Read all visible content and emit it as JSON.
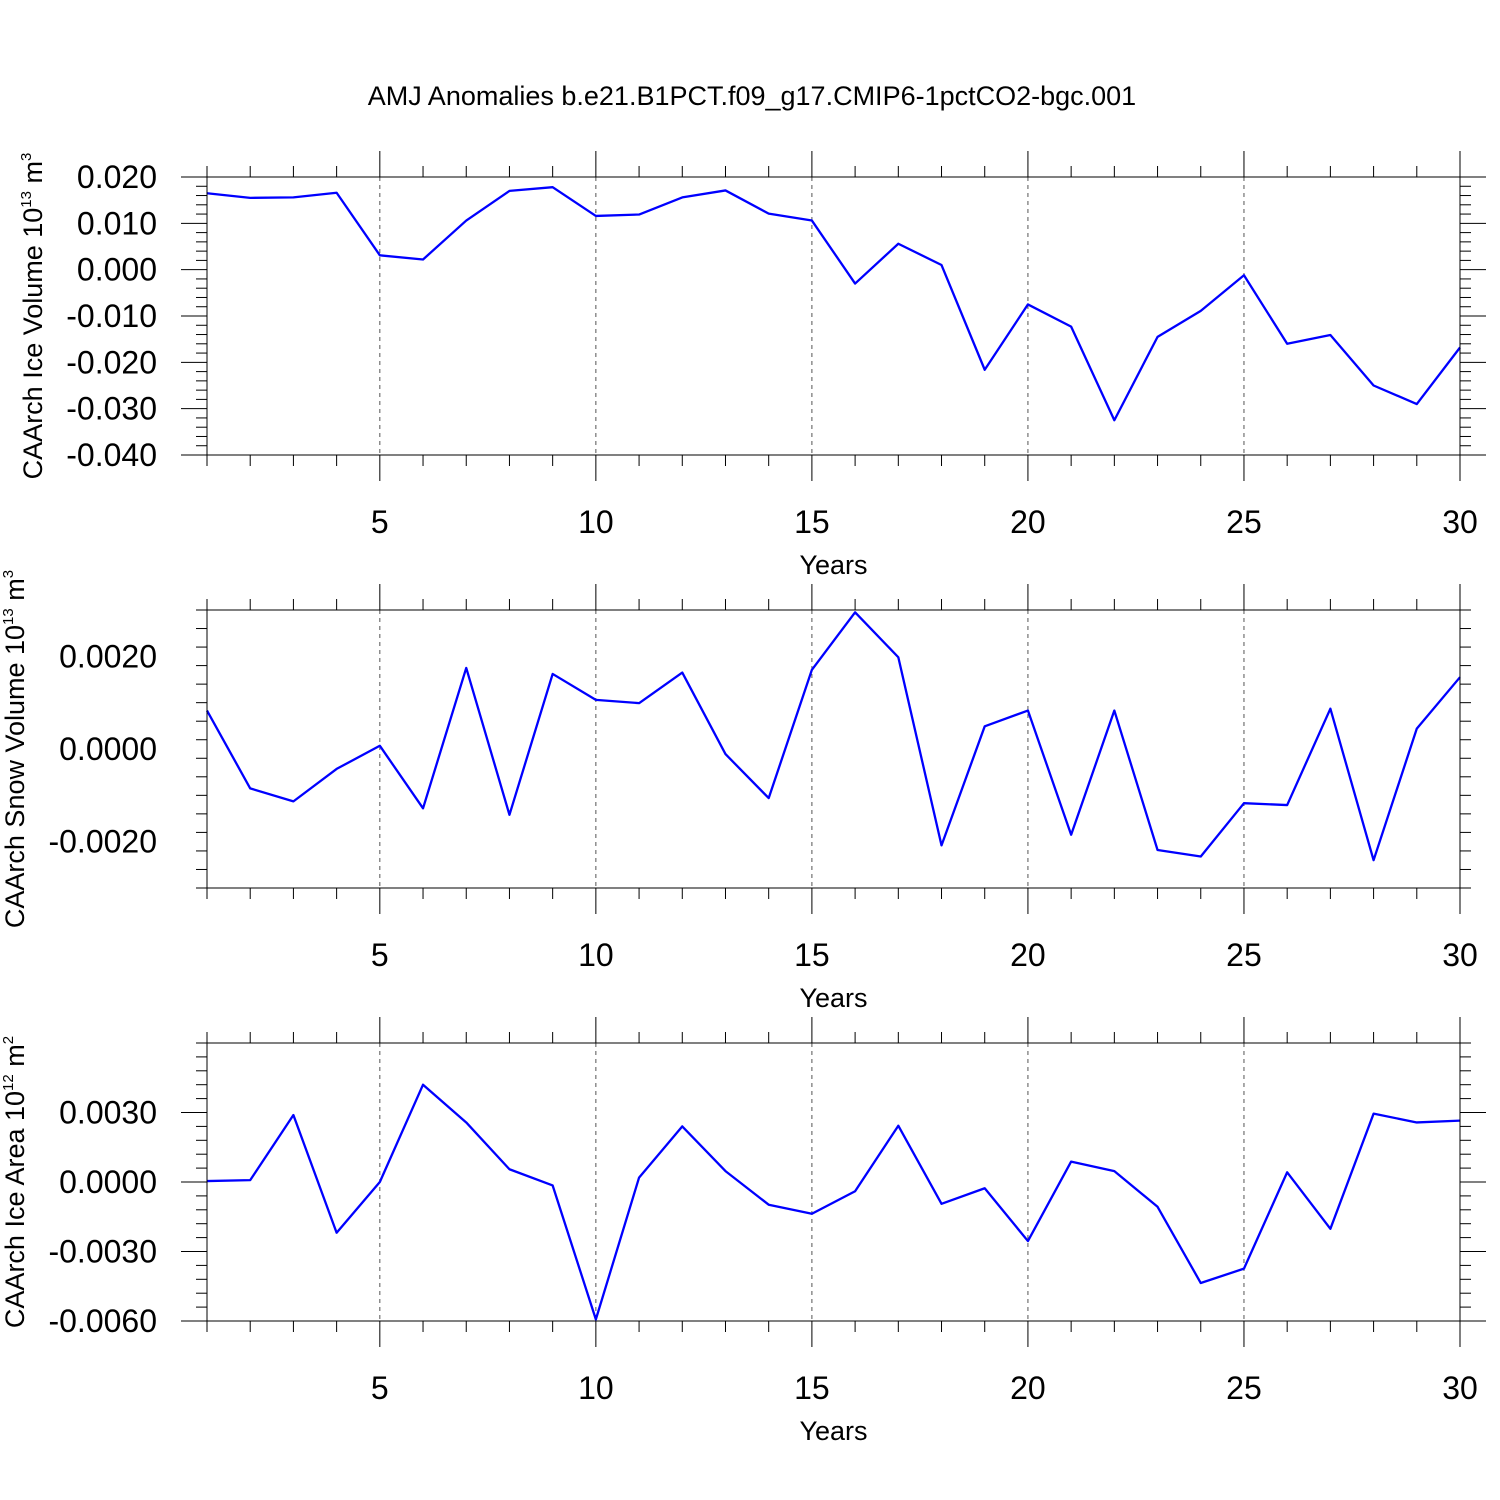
{
  "title": "AMJ Anomalies b.e21.B1PCT.f09_g17.CMIP6-1pctCO2-bgc.001",
  "chart_data": [
    {
      "type": "line",
      "title": "AMJ Anomalies b.e21.B1PCT.f09_g17.CMIP6-1pctCO2-bgc.001",
      "xlabel": "Years",
      "ylabel": {
        "prefix": "CAArch Ice Volume 10",
        "exponent": "13",
        "unit": " m",
        "unit_exponent": "3"
      },
      "xlim": [
        1,
        30
      ],
      "ylim": [
        -0.04,
        0.02
      ],
      "xticks": [
        5,
        10,
        15,
        20,
        25,
        30
      ],
      "xtick_labels": [
        "5",
        "10",
        "15",
        "20",
        "25",
        "30"
      ],
      "yticks": [
        -0.04,
        -0.03,
        -0.02,
        -0.01,
        0.0,
        0.01,
        0.02
      ],
      "ytick_labels": [
        "-0.040",
        "-0.030",
        "-0.020",
        "-0.010",
        "0.000",
        "0.010",
        "0.020"
      ],
      "grid": "vertical dashed at major x ticks",
      "line_color": "#0000ff",
      "x": [
        1,
        2,
        3,
        4,
        5,
        6,
        7,
        8,
        9,
        10,
        11,
        12,
        13,
        14,
        15,
        16,
        17,
        18,
        19,
        20,
        21,
        22,
        23,
        24,
        25,
        26,
        27,
        28,
        29,
        30
      ],
      "values": [
        0.0165,
        0.0155,
        0.0156,
        0.0166,
        0.0031,
        0.0022,
        0.0106,
        0.017,
        0.0178,
        0.0116,
        0.0119,
        0.0156,
        0.0171,
        0.0121,
        0.0106,
        -0.003,
        0.0056,
        0.001,
        -0.0216,
        -0.0075,
        -0.0123,
        -0.0325,
        -0.0145,
        -0.0089,
        -0.0012,
        -0.016,
        -0.0141,
        -0.025,
        -0.029,
        -0.0168
      ]
    },
    {
      "type": "line",
      "xlabel": "Years",
      "ylabel": {
        "prefix": "CAArch Snow Volume 10",
        "exponent": "13",
        "unit": " m",
        "unit_exponent": "3"
      },
      "xlim": [
        1,
        30
      ],
      "ylim": [
        -0.003,
        0.003
      ],
      "xticks": [
        5,
        10,
        15,
        20,
        25,
        30
      ],
      "xtick_labels": [
        "5",
        "10",
        "15",
        "20",
        "25",
        "30"
      ],
      "yticks": [
        -0.002,
        0.0,
        0.002
      ],
      "ytick_labels": [
        "-0.0020",
        "0.0000",
        "0.0020"
      ],
      "grid": "vertical dashed at major x ticks",
      "line_color": "#0000ff",
      "x": [
        1,
        2,
        3,
        4,
        5,
        6,
        7,
        8,
        9,
        10,
        11,
        12,
        13,
        14,
        15,
        16,
        17,
        18,
        19,
        20,
        21,
        22,
        23,
        24,
        25,
        26,
        27,
        28,
        29,
        30
      ],
      "values": [
        0.00083,
        -0.00085,
        -0.00113,
        -0.00043,
        7e-05,
        -0.00128,
        0.00175,
        -0.00142,
        0.00162,
        0.00106,
        0.00099,
        0.00165,
        -0.00011,
        -0.00106,
        0.00171,
        0.00295,
        0.00198,
        -0.00208,
        0.00049,
        0.00083,
        -0.00185,
        0.00083,
        -0.00218,
        -0.00232,
        -0.00117,
        -0.00121,
        0.00087,
        -0.0024,
        0.00044,
        0.00155
      ]
    },
    {
      "type": "line",
      "xlabel": "Years",
      "ylabel": {
        "prefix": "CAArch Ice Area 10",
        "exponent": "12",
        "unit": " m",
        "unit_exponent": "2"
      },
      "xlim": [
        1,
        30
      ],
      "ylim": [
        -0.006,
        0.006
      ],
      "xticks": [
        5,
        10,
        15,
        20,
        25,
        30
      ],
      "xtick_labels": [
        "5",
        "10",
        "15",
        "20",
        "25",
        "30"
      ],
      "yticks": [
        -0.006,
        -0.003,
        0.0,
        0.003
      ],
      "ytick_labels": [
        "-0.0060",
        "-0.0030",
        "0.0000",
        "0.0030"
      ],
      "grid": "vertical dashed at major x ticks",
      "line_color": "#0000ff",
      "x": [
        1,
        2,
        3,
        4,
        5,
        6,
        7,
        8,
        9,
        10,
        11,
        12,
        13,
        14,
        15,
        16,
        17,
        18,
        19,
        20,
        21,
        22,
        23,
        24,
        25,
        26,
        27,
        28,
        29,
        30
      ],
      "values": [
        4e-05,
        8e-05,
        0.00289,
        -0.00219,
        0.0,
        0.0042,
        0.00257,
        0.00055,
        -0.00015,
        -0.00593,
        0.00019,
        0.0024,
        0.00047,
        -0.00098,
        -0.00137,
        -0.0004,
        0.00243,
        -0.00094,
        -0.00027,
        -0.00255,
        0.00088,
        0.00047,
        -0.00107,
        -0.00436,
        -0.00374,
        0.00042,
        -0.00202,
        0.00295,
        0.00257,
        0.00265
      ]
    }
  ]
}
